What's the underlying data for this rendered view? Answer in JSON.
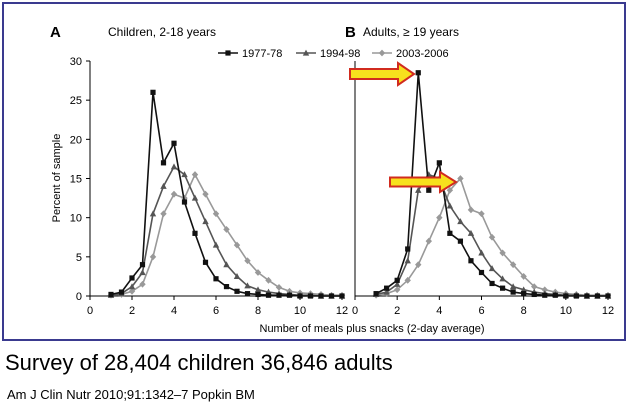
{
  "figure": {
    "xlabel": "Number of meals plus snacks (2-day average)",
    "ylabel": "Percent of sample",
    "legend": [
      "1977-78",
      "1994-98",
      "2003-2006"
    ],
    "series_colors": [
      "#111111",
      "#555555",
      "#999999"
    ],
    "frame_color": "#3a3a8f",
    "highlight_arrow_color": "#f7e11d",
    "highlight_arrow_stroke": "#d12b1f"
  },
  "chart_data": [
    {
      "type": "line",
      "panel_letter": "A",
      "title": "Children, 2-18 years",
      "xlim": [
        0,
        12
      ],
      "ylim": [
        0,
        30
      ],
      "xticks": [
        0,
        2,
        4,
        6,
        8,
        10,
        12
      ],
      "yticks": [
        0,
        5,
        10,
        15,
        20,
        25,
        30
      ],
      "x": [
        1.0,
        1.5,
        2.0,
        2.5,
        3.0,
        3.5,
        4.0,
        4.5,
        5.0,
        5.5,
        6.0,
        6.5,
        7.0,
        7.5,
        8.0,
        8.5,
        9.0,
        9.5,
        10.0,
        10.5,
        11.0,
        11.5,
        12.0
      ],
      "series": [
        {
          "name": "1977-78",
          "values": [
            0.2,
            0.5,
            2.3,
            4.0,
            26.0,
            17.0,
            19.5,
            12.0,
            8.0,
            4.3,
            2.2,
            1.2,
            0.6,
            0.3,
            0.2,
            0.1,
            0.1,
            0.1,
            0.0,
            0.0,
            0.0,
            0.0,
            0.0
          ]
        },
        {
          "name": "1994-98",
          "values": [
            0.1,
            0.3,
            1.2,
            3.0,
            10.5,
            14.0,
            16.5,
            15.5,
            12.5,
            9.5,
            6.5,
            4.0,
            2.5,
            1.3,
            0.8,
            0.5,
            0.3,
            0.2,
            0.1,
            0.1,
            0.0,
            0.0,
            0.0
          ]
        },
        {
          "name": "2003-2006",
          "values": [
            0.1,
            0.2,
            0.6,
            1.5,
            5.0,
            10.5,
            13.0,
            12.5,
            15.5,
            13.0,
            10.5,
            8.5,
            6.5,
            4.5,
            3.0,
            2.0,
            1.1,
            0.6,
            0.4,
            0.3,
            0.2,
            0.1,
            0.1
          ]
        }
      ]
    },
    {
      "type": "line",
      "panel_letter": "B",
      "title": "Adults, ≥ 19 years",
      "xlim": [
        0,
        12
      ],
      "ylim": [
        0,
        30
      ],
      "xticks": [
        0,
        2,
        4,
        6,
        8,
        10,
        12
      ],
      "yticks": [],
      "x": [
        1.0,
        1.5,
        2.0,
        2.5,
        3.0,
        3.5,
        4.0,
        4.5,
        5.0,
        5.5,
        6.0,
        6.5,
        7.0,
        7.5,
        8.0,
        8.5,
        9.0,
        9.5,
        10.0,
        10.5,
        11.0,
        11.5,
        12.0
      ],
      "series": [
        {
          "name": "1977-78",
          "values": [
            0.3,
            1.0,
            2.0,
            6.0,
            28.5,
            13.5,
            17.0,
            8.0,
            7.0,
            4.5,
            3.0,
            1.6,
            1.0,
            0.5,
            0.3,
            0.2,
            0.1,
            0.1,
            0.0,
            0.0,
            0.0,
            0.0,
            0.0
          ]
        },
        {
          "name": "1994-98",
          "values": [
            0.2,
            0.5,
            1.5,
            4.5,
            13.5,
            15.5,
            15.0,
            11.5,
            9.5,
            8.0,
            5.5,
            3.5,
            2.2,
            1.2,
            0.8,
            0.5,
            0.3,
            0.2,
            0.1,
            0.1,
            0.0,
            0.0,
            0.0
          ]
        },
        {
          "name": "2003-2006",
          "values": [
            0.1,
            0.3,
            0.8,
            2.0,
            4.0,
            7.0,
            10.0,
            13.5,
            15.0,
            11.0,
            10.5,
            7.5,
            5.5,
            4.0,
            2.5,
            1.2,
            0.8,
            0.5,
            0.3,
            0.2,
            0.1,
            0.1,
            0.1
          ]
        }
      ]
    }
  ],
  "caption": "Survey of 28,404 children 36,846 adults",
  "citation": "Am J Clin Nutr 2010;91:1342–7 Popkin BM"
}
